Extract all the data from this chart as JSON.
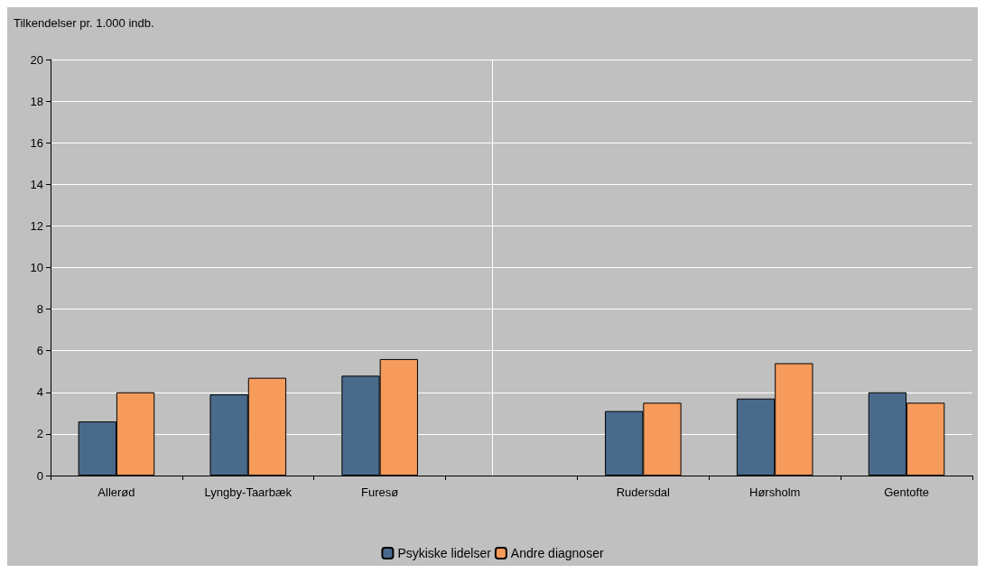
{
  "chart_data": {
    "type": "bar",
    "ylabel": "Tilkendelser pr. 1.000 indb.",
    "categories": [
      "Allerød",
      "Lyngby-Taarbæk",
      "Furesø",
      null,
      "Rudersdal",
      "Hørsholm",
      "Gentofte"
    ],
    "series": [
      {
        "name": "Psykiske lidelser",
        "color": "#4a6a8c",
        "values": [
          2.6,
          3.9,
          4.8,
          null,
          3.1,
          3.7,
          4.0
        ]
      },
      {
        "name": "Andre diagnoser",
        "color": "#f79b5c",
        "values": [
          4.0,
          4.7,
          5.6,
          null,
          3.5,
          5.4,
          3.5
        ]
      }
    ],
    "ylim": [
      0,
      20
    ],
    "yticks": [
      0,
      2,
      4,
      6,
      8,
      10,
      12,
      14,
      16,
      18,
      20
    ],
    "grid": "y",
    "legend": "bottom",
    "ref_lines": [
      {
        "axis": "x",
        "value": null,
        "color": "#ffffff"
      }
    ]
  }
}
